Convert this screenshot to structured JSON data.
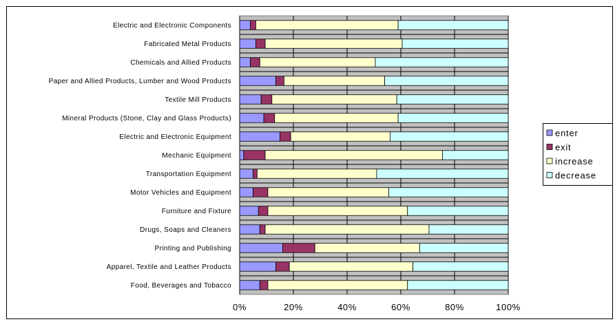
{
  "chart_data": {
    "type": "bar",
    "orientation": "horizontal",
    "stacked": "percent",
    "categories": [
      "Electric and Electronic Components",
      "Fabricated Metal Products",
      "Chemicals and Allied Products",
      "Paper and Allied Products, Lumber and Wood Products",
      "Textile Mill Products",
      "Mineral Products (Stone, Clay and Glass Products)",
      "Electric and Electronic Equipment",
      "Mechanic Equipment",
      "Transportation Equipment",
      "Motor Vehicles and Equipment",
      "Furniture and Fixture",
      "Drugs, Soaps and Cleaners",
      "Printing and Publishing",
      "Apparel, Textile and Leather Products",
      "Food, Beverages and Tobacco"
    ],
    "series": [
      {
        "name": "enter",
        "color": "#9999ff",
        "values": [
          4,
          6,
          4,
          13.5,
          8,
          9,
          15,
          1.5,
          5,
          5,
          7,
          7.5,
          16,
          13.5,
          7.5
        ]
      },
      {
        "name": "exit",
        "color": "#993366",
        "values": [
          2,
          3.5,
          3.5,
          3,
          4,
          4,
          4,
          8,
          1.5,
          5.5,
          3.5,
          2,
          12,
          5,
          3
        ]
      },
      {
        "name": "increase",
        "color": "#ffffcc",
        "values": [
          53,
          51,
          43,
          37.5,
          46.5,
          46,
          37,
          66,
          44.5,
          45,
          52,
          61,
          39,
          46,
          52
        ]
      },
      {
        "name": "decrease",
        "color": "#ccffff",
        "values": [
          41,
          39.5,
          49.5,
          46,
          41.5,
          41,
          44,
          24.5,
          49,
          44.5,
          37.5,
          29.5,
          33,
          35.5,
          37.5
        ]
      }
    ],
    "xlim": [
      0,
      100
    ],
    "xticks": [
      "0%",
      "20%",
      "40%",
      "60%",
      "80%",
      "100%"
    ],
    "grid": true,
    "legend": "right"
  }
}
